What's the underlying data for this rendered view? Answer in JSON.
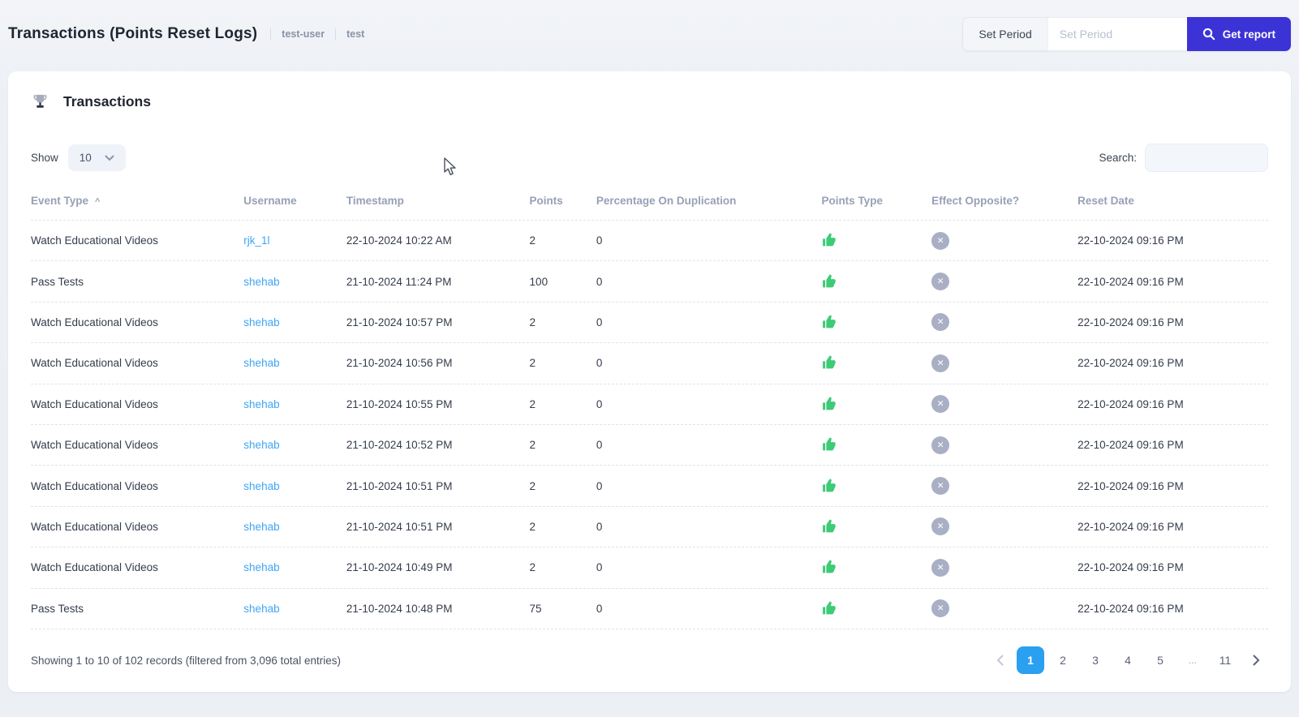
{
  "page": {
    "title": "Transactions (Points Reset Logs)",
    "breadcrumbs": [
      "test-user",
      "test"
    ]
  },
  "report_bar": {
    "label": "Set Period",
    "input_placeholder": "Set Period",
    "input_value": "",
    "button_label": "Get report"
  },
  "card": {
    "title": "Transactions",
    "show_label": "Show",
    "show_value": "10",
    "search_label": "Search:",
    "search_value": "",
    "columns": [
      "Event Type",
      "Username",
      "Timestamp",
      "Points",
      "Percentage On Duplication",
      "Points Type",
      "Effect Opposite?",
      "Reset Date"
    ],
    "sort_column": "Event Type",
    "sort_direction": "asc",
    "rows": [
      {
        "event_type": "Watch Educational Videos",
        "username": "rjk_1l",
        "timestamp": "22-10-2024 10:22 AM",
        "points": "2",
        "percentage_on_duplication": "0",
        "points_type": "thumbs-up",
        "effect_opposite": "no",
        "reset_date": "22-10-2024 09:16 PM"
      },
      {
        "event_type": "Pass Tests",
        "username": "shehab",
        "timestamp": "21-10-2024 11:24 PM",
        "points": "100",
        "percentage_on_duplication": "0",
        "points_type": "thumbs-up",
        "effect_opposite": "no",
        "reset_date": "22-10-2024 09:16 PM"
      },
      {
        "event_type": "Watch Educational Videos",
        "username": "shehab",
        "timestamp": "21-10-2024 10:57 PM",
        "points": "2",
        "percentage_on_duplication": "0",
        "points_type": "thumbs-up",
        "effect_opposite": "no",
        "reset_date": "22-10-2024 09:16 PM"
      },
      {
        "event_type": "Watch Educational Videos",
        "username": "shehab",
        "timestamp": "21-10-2024 10:56 PM",
        "points": "2",
        "percentage_on_duplication": "0",
        "points_type": "thumbs-up",
        "effect_opposite": "no",
        "reset_date": "22-10-2024 09:16 PM"
      },
      {
        "event_type": "Watch Educational Videos",
        "username": "shehab",
        "timestamp": "21-10-2024 10:55 PM",
        "points": "2",
        "percentage_on_duplication": "0",
        "points_type": "thumbs-up",
        "effect_opposite": "no",
        "reset_date": "22-10-2024 09:16 PM"
      },
      {
        "event_type": "Watch Educational Videos",
        "username": "shehab",
        "timestamp": "21-10-2024 10:52 PM",
        "points": "2",
        "percentage_on_duplication": "0",
        "points_type": "thumbs-up",
        "effect_opposite": "no",
        "reset_date": "22-10-2024 09:16 PM"
      },
      {
        "event_type": "Watch Educational Videos",
        "username": "shehab",
        "timestamp": "21-10-2024 10:51 PM",
        "points": "2",
        "percentage_on_duplication": "0",
        "points_type": "thumbs-up",
        "effect_opposite": "no",
        "reset_date": "22-10-2024 09:16 PM"
      },
      {
        "event_type": "Watch Educational Videos",
        "username": "shehab",
        "timestamp": "21-10-2024 10:51 PM",
        "points": "2",
        "percentage_on_duplication": "0",
        "points_type": "thumbs-up",
        "effect_opposite": "no",
        "reset_date": "22-10-2024 09:16 PM"
      },
      {
        "event_type": "Watch Educational Videos",
        "username": "shehab",
        "timestamp": "21-10-2024 10:49 PM",
        "points": "2",
        "percentage_on_duplication": "0",
        "points_type": "thumbs-up",
        "effect_opposite": "no",
        "reset_date": "22-10-2024 09:16 PM"
      },
      {
        "event_type": "Pass Tests",
        "username": "shehab",
        "timestamp": "21-10-2024 10:48 PM",
        "points": "75",
        "percentage_on_duplication": "0",
        "points_type": "thumbs-up",
        "effect_opposite": "no",
        "reset_date": "22-10-2024 09:16 PM"
      }
    ],
    "footer": {
      "summary": "Showing 1 to 10 of 102 records (filtered from 3,096 total entries)",
      "pages": [
        "1",
        "2",
        "3",
        "4",
        "5",
        "...",
        "11"
      ],
      "active_page": "1"
    }
  },
  "colors": {
    "accent_indigo": "#3C33D6",
    "active_page_blue": "#2B9FF0",
    "link_blue": "#3EA5F5",
    "thumbs_up_green": "#3DCB76",
    "effect_opposite_gray": "#A9AFC4"
  }
}
